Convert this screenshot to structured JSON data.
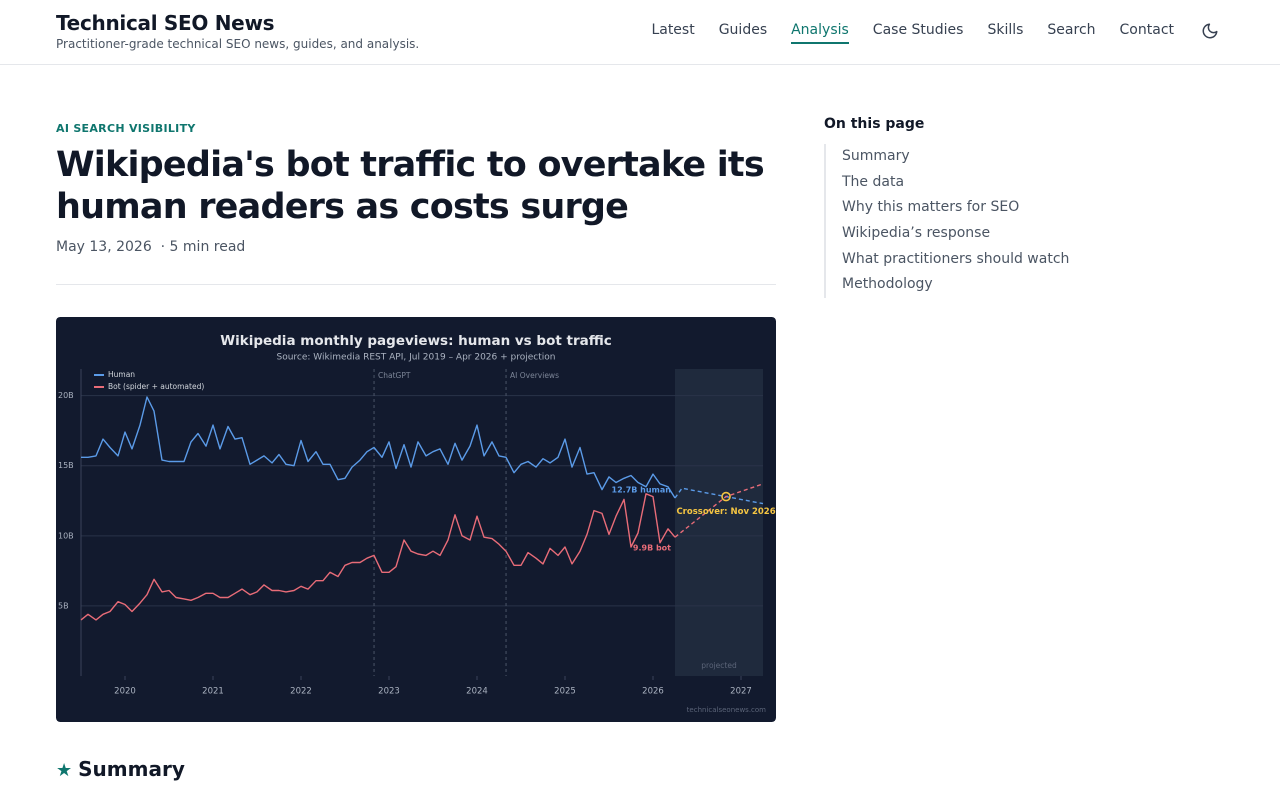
{
  "header": {
    "site_title": "Technical SEO News",
    "tagline": "Practitioner-grade technical SEO news, guides, and analysis.",
    "nav": [
      "Latest",
      "Guides",
      "Analysis",
      "Case Studies",
      "Skills",
      "Search",
      "Contact"
    ],
    "active_nav": 2
  },
  "article": {
    "category": "AI SEARCH VISIBILITY",
    "title": "Wikipedia's bot traffic to overtake its human readers as costs surge",
    "date": "May 13, 2026",
    "read_time": "· 5 min read",
    "section_heading": "Summary"
  },
  "toc": {
    "title": "On this page",
    "items": [
      "Summary",
      "The data",
      "Why this matters for SEO",
      "Wikipedia’s response",
      "What practitioners should watch",
      "Methodology"
    ]
  },
  "chart_data": {
    "type": "line",
    "title": "Wikipedia monthly pageviews: human vs bot traffic",
    "subtitle": "Source: Wikimedia REST API, Jul 2019 – Apr 2026 + projection",
    "credit": "technicalseonews.com",
    "x": [
      2019.5,
      2019.58,
      2019.67,
      2019.75,
      2019.83,
      2019.92,
      2020,
      2020.08,
      2020.17,
      2020.25,
      2020.33,
      2020.42,
      2020.5,
      2020.58,
      2020.67,
      2020.75,
      2020.83,
      2020.92,
      2021,
      2021.08,
      2021.17,
      2021.25,
      2021.33,
      2021.42,
      2021.5,
      2021.58,
      2021.67,
      2021.75,
      2021.83,
      2021.92,
      2022,
      2022.08,
      2022.17,
      2022.25,
      2022.33,
      2022.42,
      2022.5,
      2022.58,
      2022.67,
      2022.75,
      2022.83,
      2022.92,
      2023,
      2023.08,
      2023.17,
      2023.25,
      2023.33,
      2023.42,
      2023.5,
      2023.58,
      2023.67,
      2023.75,
      2023.83,
      2023.92,
      2024,
      2024.08,
      2024.17,
      2024.25,
      2024.33,
      2024.42,
      2024.5,
      2024.58,
      2024.67,
      2024.75,
      2024.83,
      2024.92,
      2025,
      2025.08,
      2025.17,
      2025.25,
      2025.33,
      2025.42,
      2025.5,
      2025.58,
      2025.67,
      2025.75,
      2025.83,
      2025.92,
      2026,
      2026.08,
      2026.17,
      2026.25
    ],
    "series": [
      {
        "name": "Human",
        "color": "#5b9be8",
        "end_label": "12.7B human",
        "values": [
          15.6,
          15.6,
          15.7,
          16.9,
          16.3,
          15.7,
          17.4,
          16.2,
          17.9,
          19.9,
          18.9,
          15.4,
          15.3,
          15.3,
          15.3,
          16.7,
          17.3,
          16.4,
          17.9,
          16.2,
          17.8,
          16.9,
          17.0,
          15.1,
          15.4,
          15.7,
          15.2,
          15.8,
          15.1,
          15.0,
          16.8,
          15.3,
          16.0,
          15.1,
          15.1,
          14.0,
          14.1,
          14.9,
          15.4,
          16.0,
          16.3,
          15.6,
          16.7,
          14.8,
          16.5,
          14.9,
          16.7,
          15.7,
          16.0,
          16.2,
          15.1,
          16.6,
          15.4,
          16.4,
          17.9,
          15.7,
          16.7,
          15.7,
          15.6,
          14.5,
          15.1,
          15.3,
          14.9,
          15.5,
          15.2,
          15.6,
          16.9,
          14.9,
          16.3,
          14.4,
          14.5,
          13.3,
          14.2,
          13.8,
          14.1,
          14.3,
          13.8,
          13.5,
          14.4,
          13.7,
          13.5,
          12.7
        ]
      },
      {
        "name": "Bot (spider + automated)",
        "color": "#e86c78",
        "end_label": "9.9B bot",
        "values": [
          4.0,
          4.4,
          4.0,
          4.4,
          4.6,
          5.3,
          5.1,
          4.6,
          5.2,
          5.8,
          6.9,
          6.0,
          6.1,
          5.6,
          5.5,
          5.4,
          5.6,
          5.9,
          5.9,
          5.6,
          5.6,
          5.9,
          6.2,
          5.8,
          6.0,
          6.5,
          6.1,
          6.1,
          6.0,
          6.1,
          6.4,
          6.2,
          6.8,
          6.8,
          7.4,
          7.1,
          7.9,
          8.1,
          8.1,
          8.4,
          8.6,
          7.4,
          7.4,
          7.8,
          9.7,
          8.9,
          8.7,
          8.6,
          8.9,
          8.6,
          9.7,
          11.5,
          10.0,
          9.7,
          11.4,
          9.9,
          9.8,
          9.4,
          8.9,
          7.9,
          7.9,
          8.8,
          8.4,
          8.0,
          9.1,
          8.6,
          9.2,
          8.0,
          8.9,
          10.1,
          11.8,
          11.6,
          10.1,
          11.4,
          12.6,
          9.2,
          10.2,
          13.0,
          12.8,
          9.5,
          10.5,
          9.9
        ]
      }
    ],
    "projections": [
      {
        "color": "#5b9be8",
        "dashed": true,
        "x": [
          2026.25,
          2026.33,
          2026.83,
          2027.25
        ],
        "values": [
          12.7,
          13.4,
          12.8,
          12.3
        ]
      },
      {
        "color": "#e86c78",
        "dashed": true,
        "x": [
          2026.25,
          2026.83,
          2027.25
        ],
        "values": [
          9.9,
          12.8,
          13.7
        ]
      }
    ],
    "events": [
      {
        "label": "ChatGPT",
        "x": 2022.83
      },
      {
        "label": "AI Overviews",
        "x": 2024.33
      }
    ],
    "projection_region": {
      "label": "projected",
      "x_start": 2026.25
    },
    "crossover": {
      "label": "Crossover: Nov 2026",
      "x": 2026.83,
      "y": 12.8,
      "color": "#f5c542"
    },
    "xlim": [
      2019.5,
      2027.25
    ],
    "xticks": [
      2020,
      2021,
      2022,
      2023,
      2024,
      2025,
      2026,
      2027
    ],
    "ylim": [
      0,
      21.9
    ],
    "yticks": [
      {
        "value": 5,
        "label": "5B"
      },
      {
        "value": 10,
        "label": "10B"
      },
      {
        "value": 15,
        "label": "15B"
      },
      {
        "value": 20,
        "label": "20B"
      }
    ],
    "grid": true,
    "legend": "top-left"
  }
}
